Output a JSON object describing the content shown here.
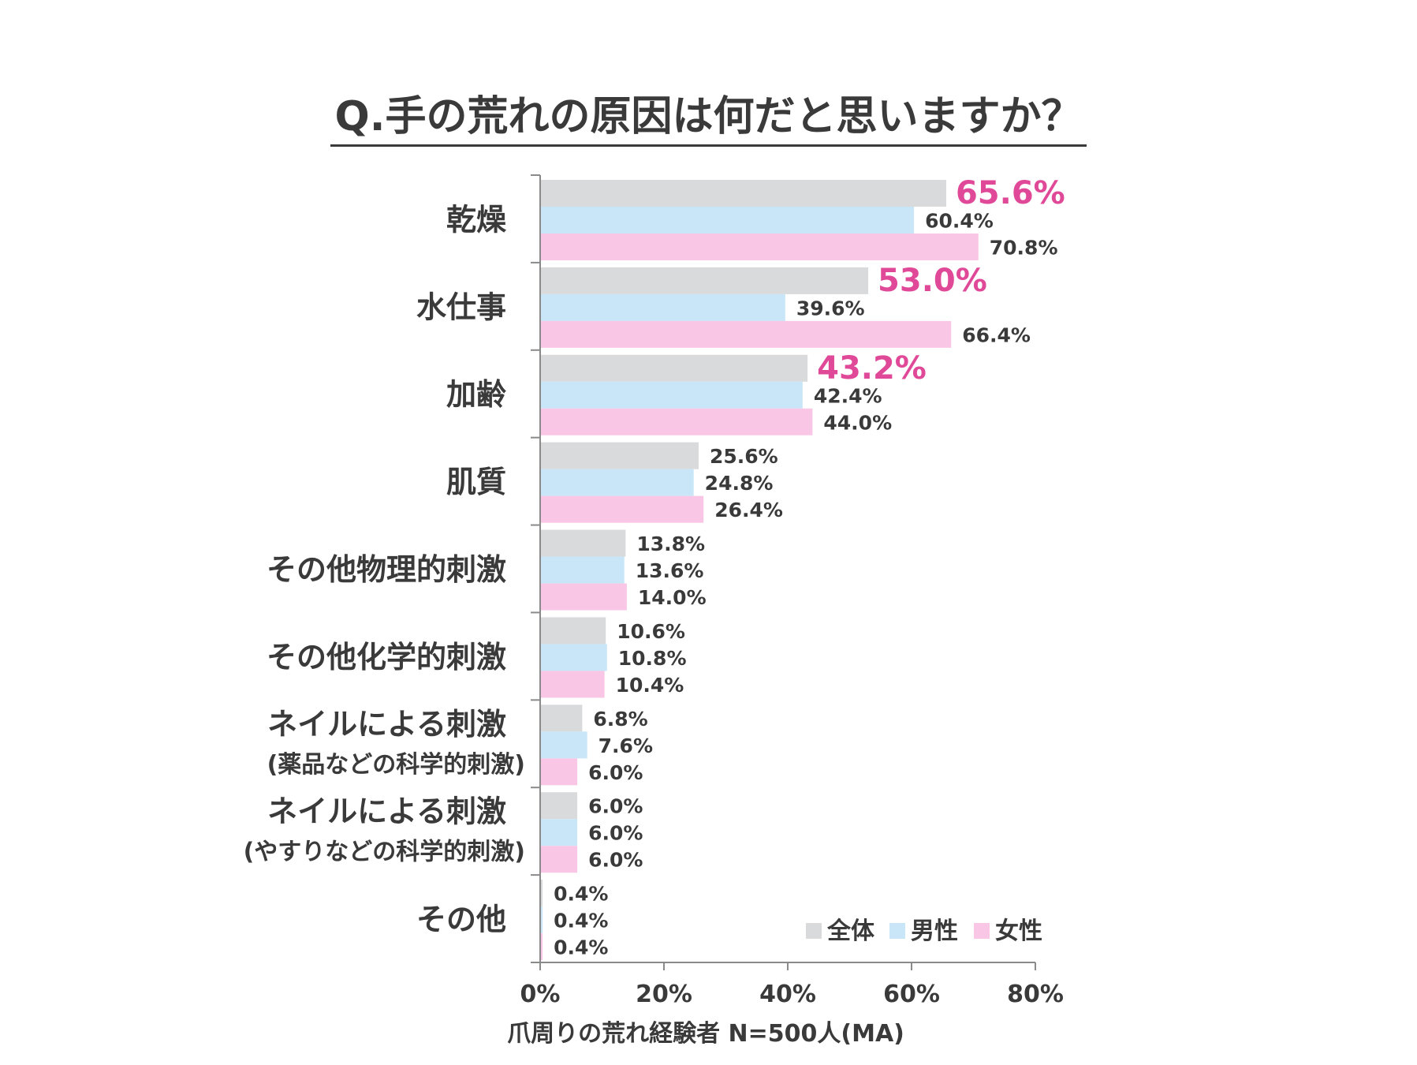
{
  "chart_data": {
    "type": "bar",
    "orientation": "horizontal",
    "title": "Q.手の荒れの原因は何だと思いますか？",
    "xlabel": "爪周りの荒れ経験者 N=500人(MA)",
    "xlim": [
      0,
      80
    ],
    "xticks": [
      "0%",
      "20%",
      "40%",
      "60%",
      "80%"
    ],
    "legend_position": "bottom-right",
    "categories": [
      {
        "main": "乾燥",
        "sub": ""
      },
      {
        "main": "水仕事",
        "sub": ""
      },
      {
        "main": "加齢",
        "sub": ""
      },
      {
        "main": "肌質",
        "sub": ""
      },
      {
        "main": "その他物理的刺激",
        "sub": ""
      },
      {
        "main": "その他化学的刺激",
        "sub": ""
      },
      {
        "main": "ネイルによる刺激",
        "sub": "(薬品などの科学的刺激)"
      },
      {
        "main": "ネイルによる刺激",
        "sub": "(やすりなどの科学的刺激)"
      },
      {
        "main": "その他",
        "sub": ""
      }
    ],
    "series": [
      {
        "name": "全体",
        "color": "#d9dadc",
        "values": [
          65.6,
          53.0,
          43.2,
          25.6,
          13.8,
          10.6,
          6.8,
          6.0,
          0.4
        ],
        "labels": [
          "65.6%",
          "53.0%",
          "43.2%",
          "25.6%",
          "13.8%",
          "10.6%",
          "6.8%",
          "6.0%",
          "0.4%"
        ]
      },
      {
        "name": "男性",
        "color": "#c8e6f7",
        "values": [
          60.4,
          39.6,
          42.4,
          24.8,
          13.6,
          10.8,
          7.6,
          6.0,
          0.4
        ],
        "labels": [
          "60.4%",
          "39.6%",
          "42.4%",
          "24.8%",
          "13.6%",
          "10.8%",
          "7.6%",
          "6.0%",
          "0.4%"
        ]
      },
      {
        "name": "女性",
        "color": "#f9c7e5",
        "values": [
          70.8,
          66.4,
          44.0,
          26.4,
          14.0,
          10.4,
          6.0,
          6.0,
          0.4
        ],
        "labels": [
          "70.8%",
          "66.4%",
          "44.0%",
          "26.4%",
          "14.0%",
          "10.4%",
          "6.0%",
          "6.0%",
          "0.4%"
        ]
      }
    ],
    "highlight_color": "#e04898",
    "axis_color": "#8a8a8a"
  }
}
